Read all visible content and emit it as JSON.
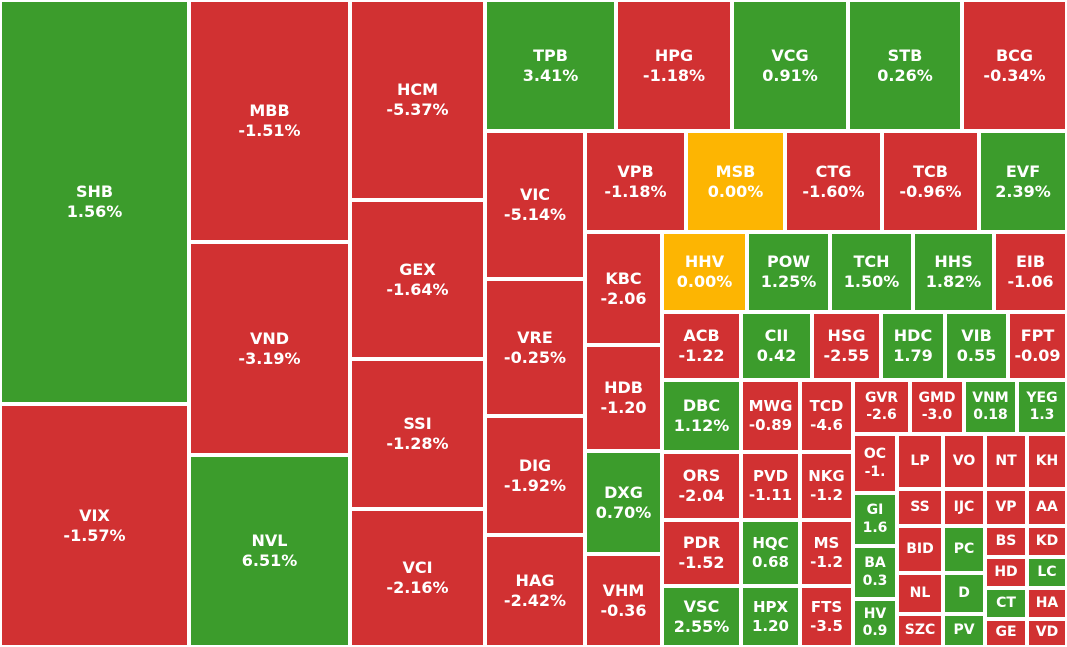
{
  "colors": {
    "up": "#3c9c2c",
    "down": "#d13132",
    "flat": "#fdb502",
    "border": "#ffffff"
  },
  "chart_data": {
    "type": "treemap",
    "items": [
      {
        "symbol": "SHB",
        "change": "1.56%",
        "value": 1.56
      },
      {
        "symbol": "VIX",
        "change": "-1.57%",
        "value": -1.57
      },
      {
        "symbol": "MBB",
        "change": "-1.51%",
        "value": -1.51
      },
      {
        "symbol": "VND",
        "change": "-3.19%",
        "value": -3.19
      },
      {
        "symbol": "NVL",
        "change": "6.51%",
        "value": 6.51
      },
      {
        "symbol": "HCM",
        "change": "-5.37%",
        "value": -5.37
      },
      {
        "symbol": "GEX",
        "change": "-1.64%",
        "value": -1.64
      },
      {
        "symbol": "SSI",
        "change": "-1.28%",
        "value": -1.28
      },
      {
        "symbol": "VCI",
        "change": "-2.16%",
        "value": -2.16
      },
      {
        "symbol": "TPB",
        "change": "3.41%",
        "value": 3.41
      },
      {
        "symbol": "HPG",
        "change": "-1.18%",
        "value": -1.18
      },
      {
        "symbol": "VCG",
        "change": "0.91%",
        "value": 0.91
      },
      {
        "symbol": "STB",
        "change": "0.26%",
        "value": 0.26
      },
      {
        "symbol": "BCG",
        "change": "-0.34%",
        "value": -0.34
      },
      {
        "symbol": "VIC",
        "change": "-5.14%",
        "value": -5.14
      },
      {
        "symbol": "VRE",
        "change": "-0.25%",
        "value": -0.25
      },
      {
        "symbol": "DIG",
        "change": "-1.92%",
        "value": -1.92
      },
      {
        "symbol": "HAG",
        "change": "-2.42%",
        "value": -2.42
      },
      {
        "symbol": "VPB",
        "change": "-1.18%",
        "value": -1.18
      },
      {
        "symbol": "MSB",
        "change": "0.00%",
        "value": 0
      },
      {
        "symbol": "CTG",
        "change": "-1.60%",
        "value": -1.6
      },
      {
        "symbol": "TCB",
        "change": "-0.96%",
        "value": -0.96
      },
      {
        "symbol": "EVF",
        "change": "2.39%",
        "value": 2.39
      },
      {
        "symbol": "KBC",
        "change": "-2.06",
        "value": -2.06
      },
      {
        "symbol": "HDB",
        "change": "-1.20",
        "value": -1.2
      },
      {
        "symbol": "DXG",
        "change": "0.70%",
        "value": 0.7
      },
      {
        "symbol": "VHM",
        "change": "-0.36",
        "value": -0.36
      },
      {
        "symbol": "HHV",
        "change": "0.00%",
        "value": 0
      },
      {
        "symbol": "POW",
        "change": "1.25%",
        "value": 1.25
      },
      {
        "symbol": "TCH",
        "change": "1.50%",
        "value": 1.5
      },
      {
        "symbol": "HHS",
        "change": "1.82%",
        "value": 1.82
      },
      {
        "symbol": "EIB",
        "change": "-1.06",
        "value": -1.06
      },
      {
        "symbol": "ACB",
        "change": "-1.22",
        "value": -1.22
      },
      {
        "symbol": "CII",
        "change": "0.42",
        "value": 0.42
      },
      {
        "symbol": "HSG",
        "change": "-2.55",
        "value": -2.55
      },
      {
        "symbol": "HDC",
        "change": "1.79",
        "value": 1.79
      },
      {
        "symbol": "VIB",
        "change": "0.55",
        "value": 0.55
      },
      {
        "symbol": "FPT",
        "change": "-0.09",
        "value": -0.09
      },
      {
        "symbol": "DBC",
        "change": "1.12%",
        "value": 1.12
      },
      {
        "symbol": "MWG",
        "change": "-0.89",
        "value": -0.89
      },
      {
        "symbol": "TCD",
        "change": "-4.6",
        "value": -4.6
      },
      {
        "symbol": "GVR",
        "change": "-2.6",
        "value": -2.6
      },
      {
        "symbol": "GMD",
        "change": "-3.0",
        "value": -3.0
      },
      {
        "symbol": "VNM",
        "change": "0.18",
        "value": 0.18
      },
      {
        "symbol": "YEG",
        "change": "1.3",
        "value": 1.3
      },
      {
        "symbol": "ORS",
        "change": "-2.04",
        "value": -2.04
      },
      {
        "symbol": "PVD",
        "change": "-1.11",
        "value": -1.11
      },
      {
        "symbol": "NKG",
        "change": "-1.2",
        "value": -1.2
      },
      {
        "symbol": "OC",
        "change": "-1.",
        "value": -1
      },
      {
        "symbol": "LP",
        "change": "",
        "value": -1
      },
      {
        "symbol": "VO",
        "change": "",
        "value": -1
      },
      {
        "symbol": "NT",
        "change": "",
        "value": -1
      },
      {
        "symbol": "KH",
        "change": "",
        "value": -1
      },
      {
        "symbol": "GI",
        "change": "1.6",
        "value": 1.6
      },
      {
        "symbol": "SS",
        "change": "",
        "value": -1
      },
      {
        "symbol": "IJC",
        "change": "",
        "value": -1
      },
      {
        "symbol": "VP",
        "change": "",
        "value": -1
      },
      {
        "symbol": "AA",
        "change": "",
        "value": -1
      },
      {
        "symbol": "PDR",
        "change": "-1.52",
        "value": -1.52
      },
      {
        "symbol": "HQC",
        "change": "0.68",
        "value": 0.68
      },
      {
        "symbol": "MS",
        "change": "-1.2",
        "value": -1.2
      },
      {
        "symbol": "BA",
        "change": "0.3",
        "value": 0.3
      },
      {
        "symbol": "BID",
        "change": "",
        "value": -1
      },
      {
        "symbol": "PC",
        "change": "",
        "value": 1
      },
      {
        "symbol": "BS",
        "change": "",
        "value": -1
      },
      {
        "symbol": "KD",
        "change": "",
        "value": -1
      },
      {
        "symbol": "HD",
        "change": "",
        "value": -1
      },
      {
        "symbol": "LC",
        "change": "",
        "value": 1
      },
      {
        "symbol": "NL",
        "change": "",
        "value": -1
      },
      {
        "symbol": "D",
        "change": "",
        "value": 1
      },
      {
        "symbol": "CT",
        "change": "",
        "value": 1
      },
      {
        "symbol": "HA",
        "change": "",
        "value": -1
      },
      {
        "symbol": "VSC",
        "change": "2.55%",
        "value": 2.55
      },
      {
        "symbol": "HPX",
        "change": "1.20",
        "value": 1.2
      },
      {
        "symbol": "FTS",
        "change": "-3.5",
        "value": -3.5
      },
      {
        "symbol": "HV",
        "change": "0.9",
        "value": 0.9
      },
      {
        "symbol": "SZC",
        "change": "",
        "value": -1
      },
      {
        "symbol": "PV",
        "change": "",
        "value": 1
      },
      {
        "symbol": "GE",
        "change": "",
        "value": -1
      },
      {
        "symbol": "VD",
        "change": "",
        "value": -1
      }
    ]
  }
}
